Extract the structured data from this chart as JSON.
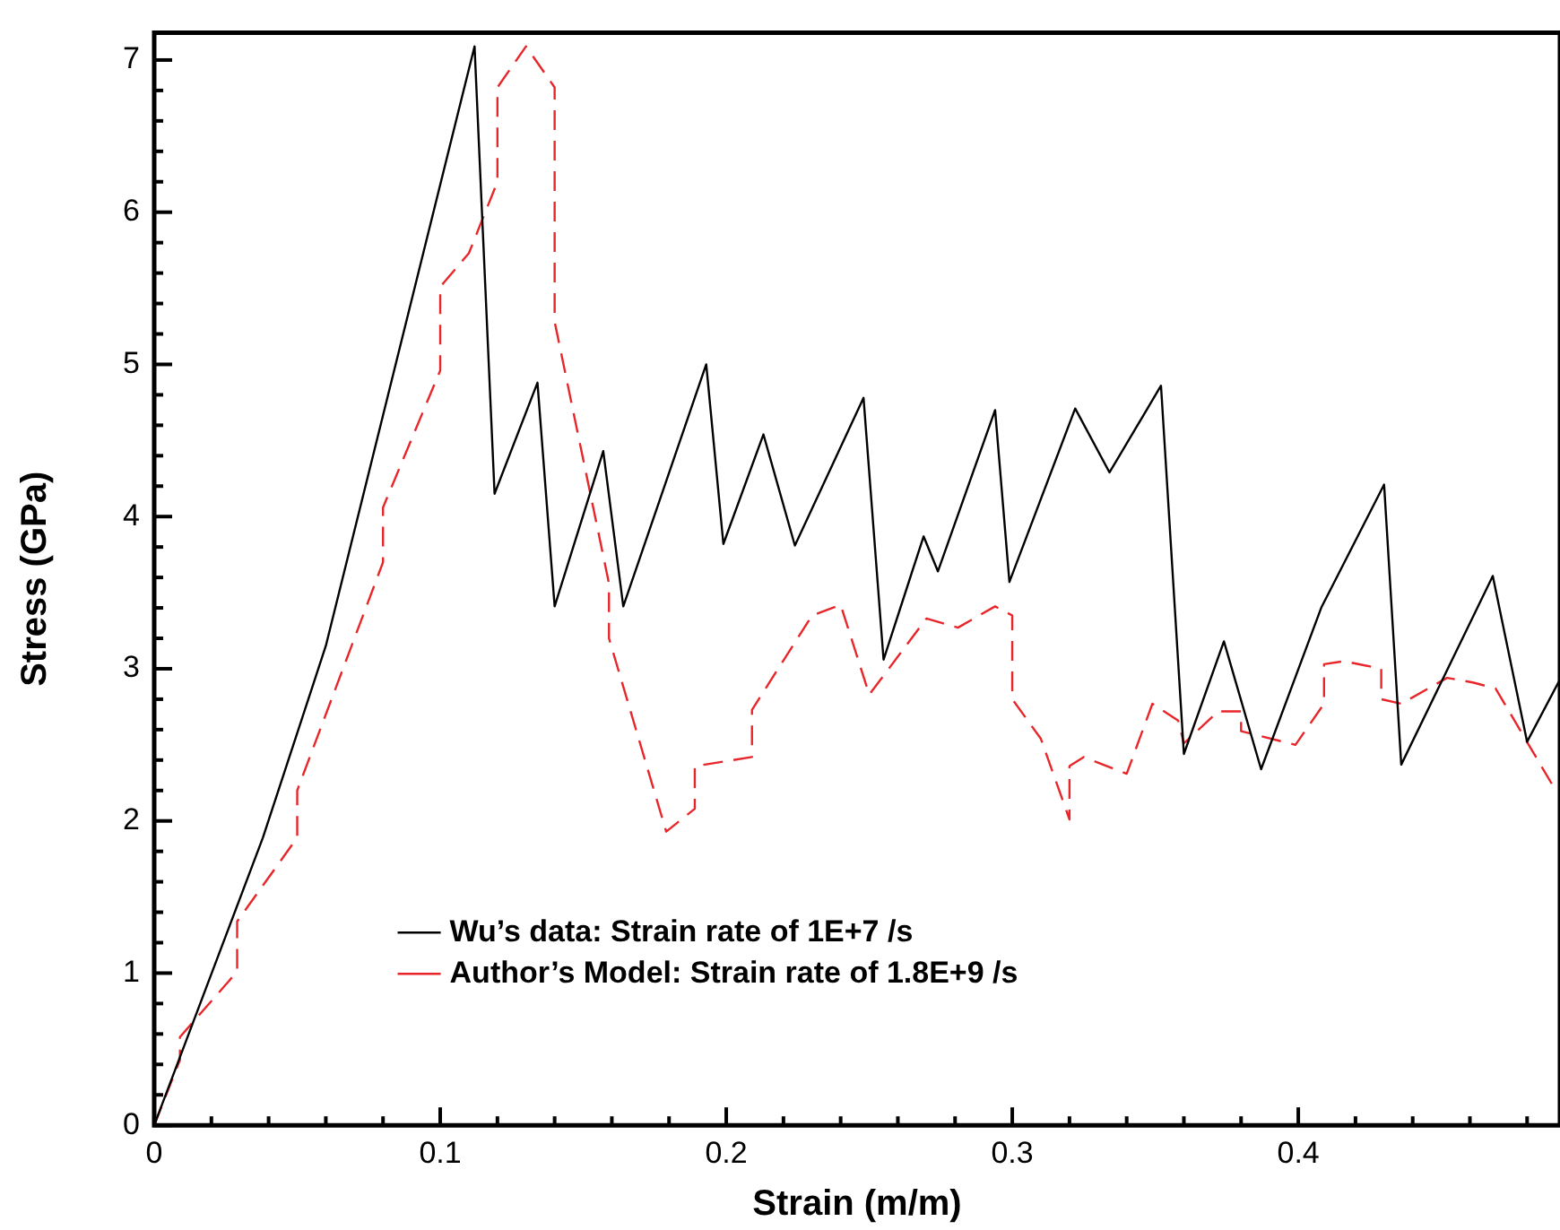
{
  "chart_data": {
    "type": "line",
    "xlabel": "Strain (m/m)",
    "ylabel": "Stress (GPa)",
    "xlim": [
      0,
      0.4915
    ],
    "ylim": [
      0,
      7.18
    ],
    "xticks": [
      0,
      {
        "value": 0.02,
        "label": null
      },
      {
        "value": 0.04,
        "label": null
      },
      {
        "value": 0.06,
        "label": null
      },
      {
        "value": 0.08,
        "label": null
      },
      0.1,
      {
        "value": 0.12,
        "label": null
      },
      {
        "value": 0.14,
        "label": null
      },
      {
        "value": 0.16,
        "label": null
      },
      {
        "value": 0.18,
        "label": null
      },
      0.2,
      {
        "value": 0.22,
        "label": null
      },
      {
        "value": 0.24,
        "label": null
      },
      {
        "value": 0.26,
        "label": null
      },
      {
        "value": 0.28,
        "label": null
      },
      0.3,
      {
        "value": 0.32,
        "label": null
      },
      {
        "value": 0.34,
        "label": null
      },
      {
        "value": 0.36,
        "label": null
      },
      {
        "value": 0.38,
        "label": null
      },
      0.4,
      {
        "value": 0.42,
        "label": null
      },
      {
        "value": 0.44,
        "label": null
      },
      {
        "value": 0.46,
        "label": null
      },
      {
        "value": 0.48,
        "label": null
      }
    ],
    "yticks": [
      0,
      {
        "value": 0.2,
        "label": null
      },
      {
        "value": 0.4,
        "label": null
      },
      {
        "value": 0.6,
        "label": null
      },
      {
        "value": 0.8,
        "label": null
      },
      1,
      {
        "value": 1.2,
        "label": null
      },
      {
        "value": 1.4,
        "label": null
      },
      {
        "value": 1.6,
        "label": null
      },
      {
        "value": 1.8,
        "label": null
      },
      2,
      {
        "value": 2.2,
        "label": null
      },
      {
        "value": 2.4,
        "label": null
      },
      {
        "value": 2.6,
        "label": null
      },
      {
        "value": 2.8,
        "label": null
      },
      3,
      {
        "value": 3.2,
        "label": null
      },
      {
        "value": 3.4,
        "label": null
      },
      {
        "value": 3.6,
        "label": null
      },
      {
        "value": 3.8,
        "label": null
      },
      4,
      {
        "value": 4.2,
        "label": null
      },
      {
        "value": 4.4,
        "label": null
      },
      {
        "value": 4.6,
        "label": null
      },
      {
        "value": 4.8,
        "label": null
      },
      5,
      {
        "value": 5.2,
        "label": null
      },
      {
        "value": 5.4,
        "label": null
      },
      {
        "value": 5.6,
        "label": null
      },
      {
        "value": 5.8,
        "label": null
      },
      6,
      {
        "value": 6.2,
        "label": null
      },
      {
        "value": 6.4,
        "label": null
      },
      {
        "value": 6.6,
        "label": null
      },
      {
        "value": 6.8,
        "label": null
      },
      7
    ],
    "grid": false,
    "legend": "bottom",
    "marker": "none",
    "series": [
      {
        "name": "Wu’s data: Strain rate of 1E+7 /s",
        "color": "#000000",
        "line_style": "solid",
        "x": [
          0,
          0.038,
          0.06,
          0.112,
          0.119,
          0.134,
          0.14,
          0.157,
          0.164,
          0.193,
          0.199,
          0.213,
          0.224,
          0.248,
          0.255,
          0.269,
          0.274,
          0.294,
          0.299,
          0.322,
          0.334,
          0.352,
          0.36,
          0.374,
          0.387,
          0.408,
          0.43,
          0.436,
          0.468,
          0.48,
          0.4915
        ],
        "values": [
          0,
          1.89,
          3.15,
          7.09,
          4.15,
          4.88,
          3.41,
          4.43,
          3.41,
          5.0,
          3.82,
          4.54,
          3.81,
          4.78,
          3.06,
          3.87,
          3.64,
          4.7,
          3.57,
          4.71,
          4.29,
          4.86,
          2.44,
          3.18,
          2.34,
          3.4,
          4.21,
          2.37,
          3.61,
          2.52,
          2.93
        ]
      },
      {
        "name": "Author’s Model: Strain rate of 1.8E+9 /s",
        "color": "#e8262a",
        "line_style": "dashed",
        "x": [
          0,
          0.009,
          0.009,
          0.029,
          0.029,
          0.05,
          0.05,
          0.08,
          0.08,
          0.1,
          0.1,
          0.11,
          0.12,
          0.12,
          0.13,
          0.14,
          0.14,
          0.159,
          0.159,
          0.179,
          0.189,
          0.189,
          0.209,
          0.209,
          0.23,
          0.24,
          0.25,
          0.27,
          0.281,
          0.294,
          0.3,
          0.3,
          0.31,
          0.32,
          0.32,
          0.325,
          0.34,
          0.349,
          0.358,
          0.36,
          0.372,
          0.38,
          0.38,
          0.399,
          0.409,
          0.409,
          0.416,
          0.429,
          0.429,
          0.436,
          0.452,
          0.461,
          0.469,
          0.479,
          0.49
        ],
        "values": [
          0,
          0.43,
          0.58,
          1.01,
          1.34,
          1.89,
          2.2,
          3.7,
          4.06,
          4.96,
          5.51,
          5.73,
          6.2,
          6.82,
          7.09,
          6.82,
          5.28,
          3.56,
          3.2,
          1.93,
          2.08,
          2.36,
          2.42,
          2.73,
          3.35,
          3.42,
          2.83,
          3.33,
          3.27,
          3.41,
          3.35,
          2.8,
          2.54,
          2.01,
          2.36,
          2.42,
          2.31,
          2.77,
          2.66,
          2.51,
          2.72,
          2.72,
          2.59,
          2.5,
          2.77,
          3.03,
          3.05,
          3.0,
          2.8,
          2.77,
          2.94,
          2.91,
          2.87,
          2.55,
          2.2
        ]
      }
    ]
  }
}
